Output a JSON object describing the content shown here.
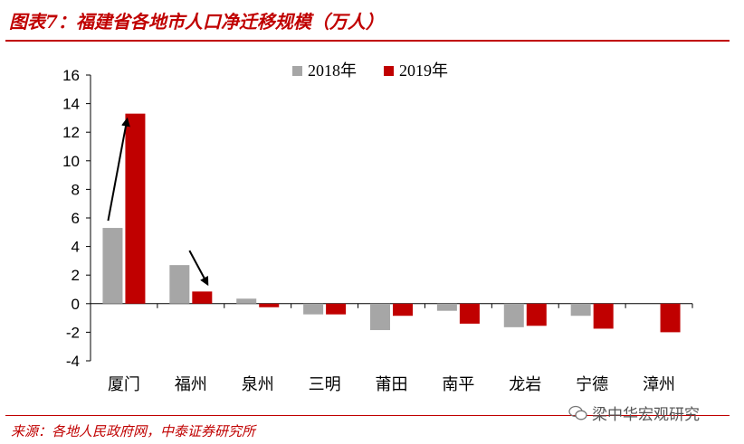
{
  "title": "图表7：福建省各地市人口净迁移规模（万人）",
  "source": "来源：各地人民政府网，中泰证券研究所",
  "watermark": "梁中华宏观研究",
  "colors": {
    "series2018": "#a6a6a6",
    "series2019": "#c00000",
    "accent": "#c00000"
  },
  "chart_data": {
    "type": "bar",
    "categories": [
      "厦门",
      "福州",
      "泉州",
      "三明",
      "莆田",
      "南平",
      "龙岩",
      "宁德",
      "漳州"
    ],
    "series": [
      {
        "name": "2018年",
        "values": [
          5.3,
          2.7,
          0.35,
          -0.75,
          -1.85,
          -0.5,
          -1.65,
          -0.85,
          0
        ]
      },
      {
        "name": "2019年",
        "values": [
          13.3,
          0.85,
          -0.25,
          -0.75,
          -0.85,
          -1.4,
          -1.55,
          -1.75,
          -2.0
        ]
      }
    ],
    "ylim": [
      -4,
      16
    ],
    "yticks": [
      -4,
      -2,
      0,
      2,
      4,
      6,
      8,
      10,
      12,
      14,
      16
    ],
    "legend_position": "top",
    "grid": false
  }
}
